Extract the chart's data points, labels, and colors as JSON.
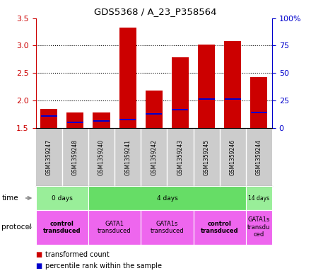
{
  "title": "GDS5368 / A_23_P358564",
  "samples": [
    "GSM1359247",
    "GSM1359248",
    "GSM1359240",
    "GSM1359241",
    "GSM1359242",
    "GSM1359243",
    "GSM1359245",
    "GSM1359246",
    "GSM1359244"
  ],
  "bar_top": [
    1.85,
    1.78,
    1.78,
    3.33,
    2.18,
    2.78,
    3.02,
    3.08,
    2.42
  ],
  "bar_bottom": 1.5,
  "blue_pos": [
    1.72,
    1.6,
    1.62,
    1.65,
    1.76,
    1.83,
    2.02,
    2.02,
    1.78
  ],
  "ylim": [
    1.5,
    3.5
  ],
  "yticks_left": [
    1.5,
    2.0,
    2.5,
    3.0,
    3.5
  ],
  "yticks_right": [
    0,
    25,
    50,
    75,
    100
  ],
  "right_ylim": [
    0,
    100
  ],
  "bar_color": "#cc0000",
  "blue_color": "#0000cc",
  "bar_width": 0.65,
  "time_groups": [
    {
      "label": "0 days",
      "start": 0,
      "end": 2,
      "color": "#99ee99"
    },
    {
      "label": "4 days",
      "start": 2,
      "end": 8,
      "color": "#66dd66"
    },
    {
      "label": "14 days",
      "start": 8,
      "end": 9,
      "color": "#99ee99"
    }
  ],
  "protocol_groups": [
    {
      "label": "control\ntransduced",
      "start": 0,
      "end": 2,
      "color": "#ee66ee",
      "bold": true
    },
    {
      "label": "GATA1\ntransduced",
      "start": 2,
      "end": 4,
      "color": "#ee66ee",
      "bold": false
    },
    {
      "label": "GATA1s\ntransduced",
      "start": 4,
      "end": 6,
      "color": "#ee66ee",
      "bold": false
    },
    {
      "label": "control\ntransduced",
      "start": 6,
      "end": 8,
      "color": "#ee66ee",
      "bold": true
    },
    {
      "label": "GATA1s\ntransdu\nced",
      "start": 8,
      "end": 9,
      "color": "#ee66ee",
      "bold": false
    }
  ],
  "legend_items": [
    {
      "color": "#cc0000",
      "label": "transformed count"
    },
    {
      "color": "#0000cc",
      "label": "percentile rank within the sample"
    }
  ],
  "left_axis_color": "#cc0000",
  "right_axis_color": "#0000cc",
  "plot_bg": "#ffffff",
  "tick_label_bg": "#cccccc",
  "grid_dotted_at": [
    2.0,
    2.5,
    3.0
  ]
}
